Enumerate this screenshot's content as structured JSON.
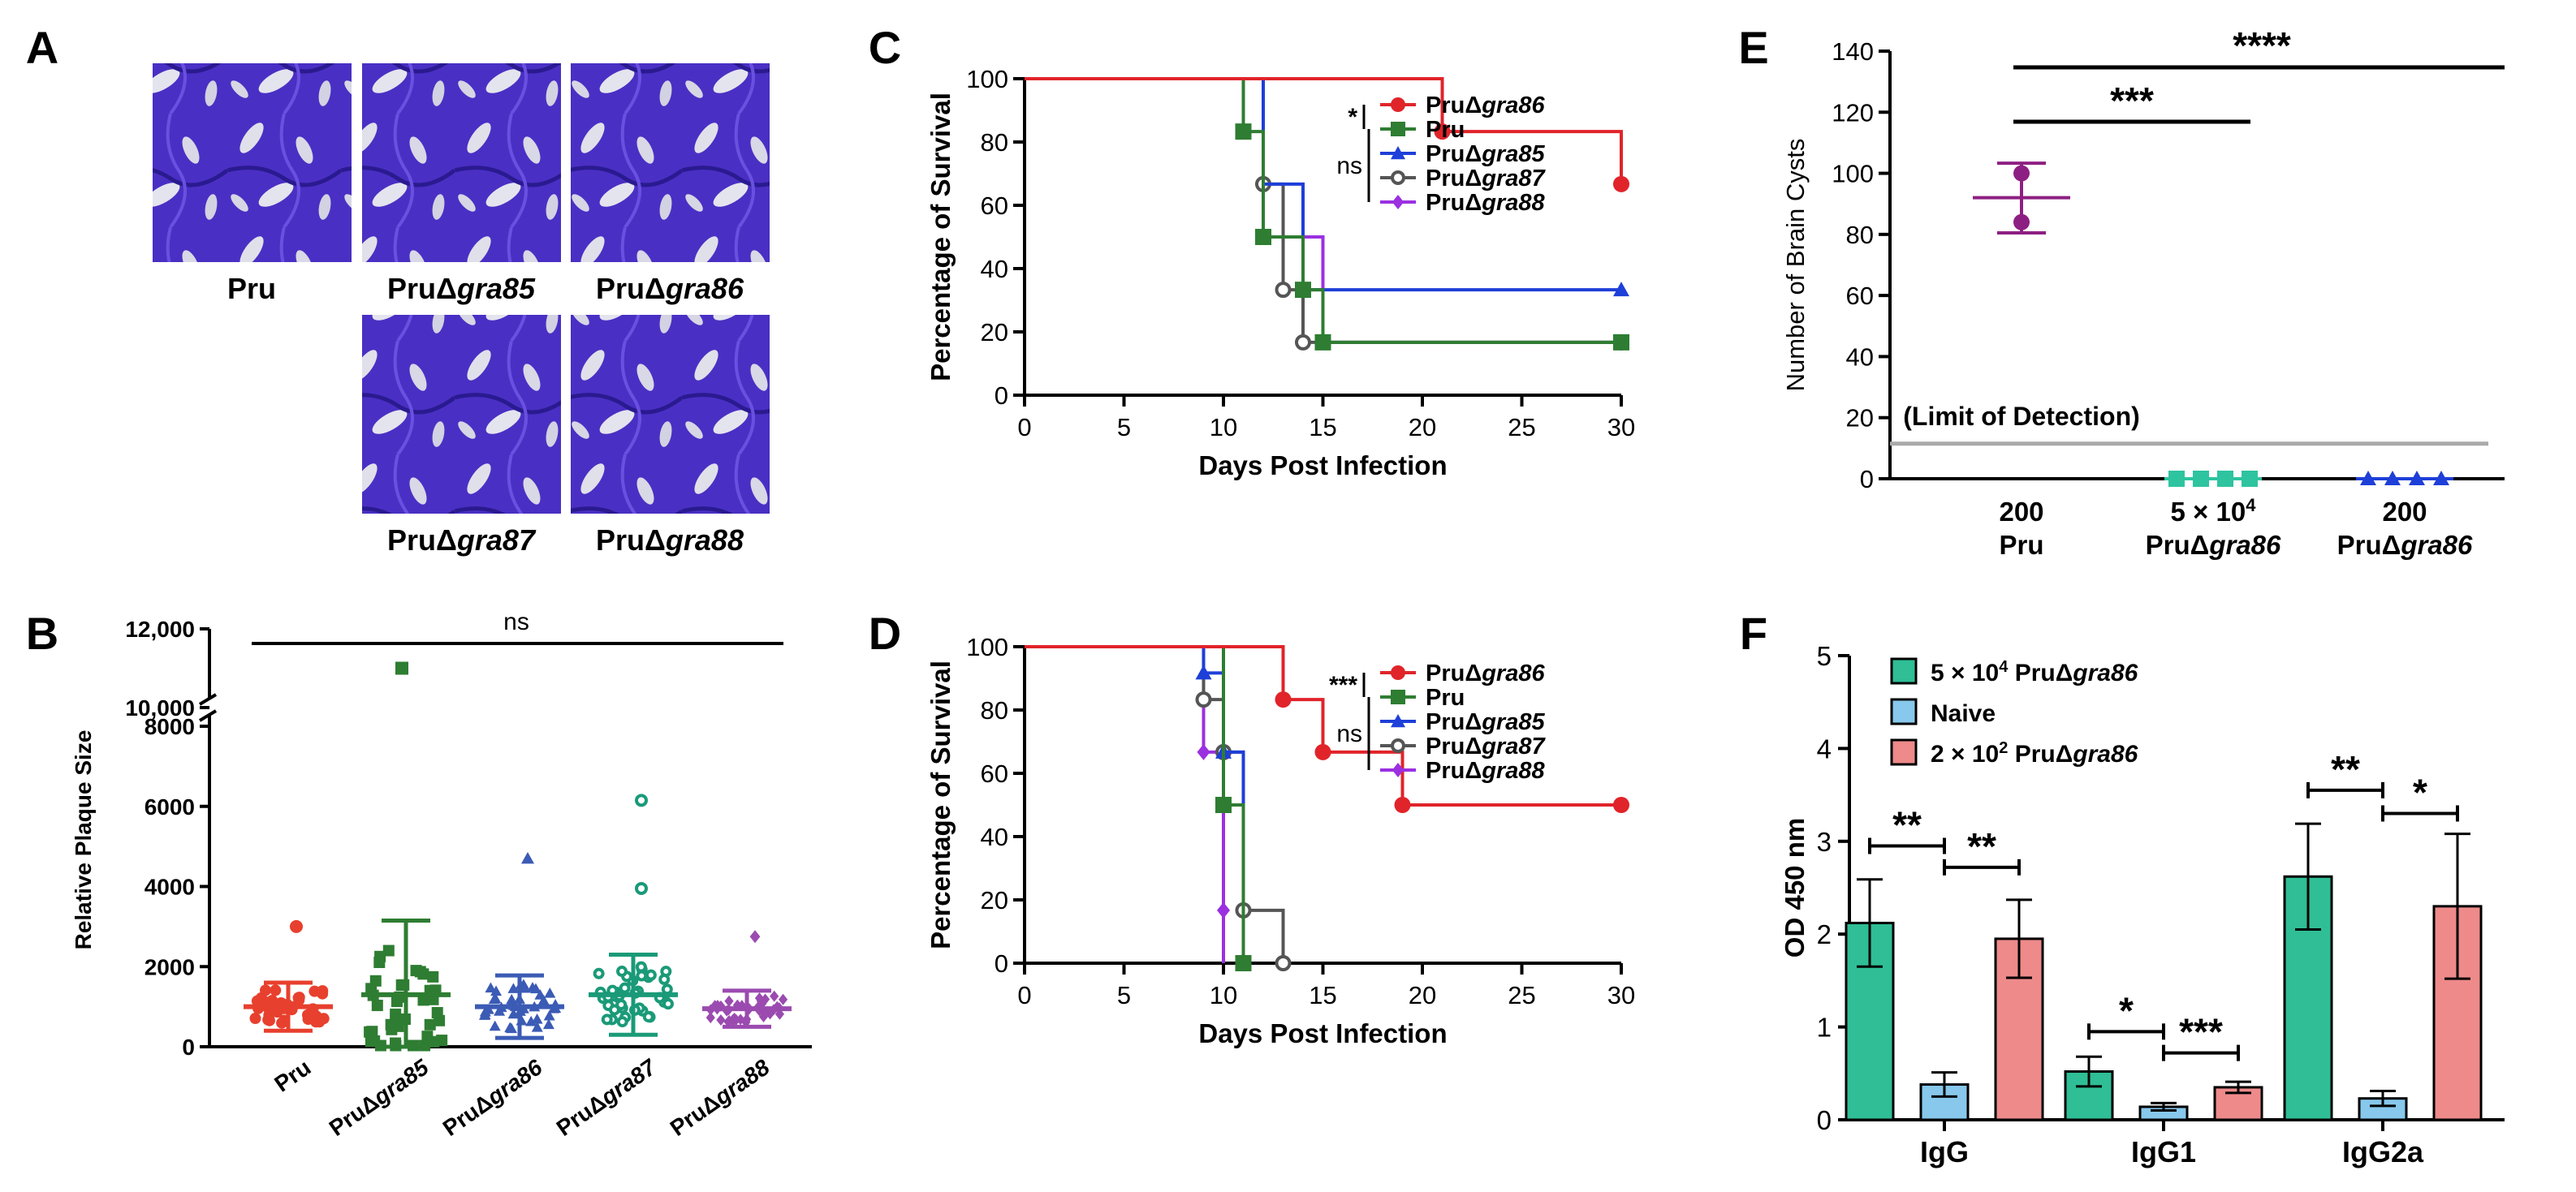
{
  "panel_letters": {
    "A": "A",
    "B": "B",
    "C": "C",
    "D": "D",
    "E": "E",
    "F": "F"
  },
  "colors": {
    "pru": "#2e7d32",
    "gra85": "#1e3fd8",
    "gra86": "#e0242a",
    "gra87": "#555555",
    "gra88": "#9b30e0",
    "plaque_bg": "#4a2fc4",
    "e_point": "#8e1f82",
    "e_gra85": "#2ec4a0",
    "f_vacc": "#2fbe96",
    "f_naive": "#87c8ec",
    "f_low": "#ee8a8a",
    "lod": "#aaaaaa"
  },
  "panelA": {
    "labels": [
      {
        "prefix": "Pru",
        "gene": ""
      },
      {
        "prefix": "PruΔ",
        "gene": "gra85"
      },
      {
        "prefix": "PruΔ",
        "gene": "gra86"
      },
      {
        "prefix": "PruΔ",
        "gene": "gra87"
      },
      {
        "prefix": "PruΔ",
        "gene": "gra88"
      }
    ]
  },
  "chart_data": [
    {
      "panel": "B",
      "type": "scatter",
      "title": "",
      "ylabel": "Relative Plaque Size",
      "yticks": [
        "0",
        "2000",
        "4000",
        "6000",
        "8000"
      ],
      "break_ticks": [
        "10,000",
        "12,000"
      ],
      "ylim": [
        0,
        12000
      ],
      "categories": [
        "Pru",
        "PruΔgra85",
        "PruΔgra86",
        "PruΔgra87",
        "PruΔgra88"
      ],
      "cat_prefix": [
        "Pru",
        "PruΔ",
        "PruΔ",
        "PruΔ",
        "PruΔ"
      ],
      "cat_gene": [
        "",
        "gra85",
        "gra86",
        "gra87",
        "gra88"
      ],
      "means": [
        1000,
        1300,
        1000,
        1300,
        950
      ],
      "sd": [
        600,
        1850,
        780,
        1000,
        450
      ],
      "outliers": [
        [
          3000
        ],
        [
          11000
        ],
        [
          4700
        ],
        [
          6150,
          3950
        ],
        [
          2750
        ]
      ],
      "significance": "ns"
    },
    {
      "panel": "C",
      "type": "line",
      "xlabel": "Days Post Infection",
      "ylabel": "Percentage of Survival",
      "xticks": [
        "0",
        "5",
        "10",
        "15",
        "20",
        "25",
        "30"
      ],
      "yticks": [
        "0",
        "20",
        "40",
        "60",
        "80",
        "100"
      ],
      "xlim": [
        0,
        30
      ],
      "ylim": [
        0,
        100
      ],
      "series": [
        {
          "name": "PruΔgra86",
          "prefix": "PruΔ",
          "gene": "gra86",
          "key": "gra86",
          "marker": "circle",
          "steps": [
            [
              0,
              100
            ],
            [
              21,
              83.3
            ],
            [
              30,
              66.7
            ]
          ],
          "points": [
            [
              21,
              83.3
            ],
            [
              30,
              66.7
            ]
          ]
        },
        {
          "name": "Pru",
          "prefix": "Pru",
          "gene": "",
          "key": "pru",
          "marker": "square",
          "steps": [
            [
              0,
              100
            ],
            [
              11,
              83.3
            ],
            [
              12,
              50
            ],
            [
              14,
              33.3
            ],
            [
              15,
              16.7
            ],
            [
              30,
              16.7
            ]
          ],
          "points": [
            [
              11,
              83.3
            ],
            [
              12,
              50
            ],
            [
              14,
              33.3
            ],
            [
              15,
              16.7
            ],
            [
              30,
              16.7
            ]
          ]
        },
        {
          "name": "PruΔgra85",
          "prefix": "PruΔ",
          "gene": "gra85",
          "key": "gra85",
          "marker": "triangle",
          "steps": [
            [
              0,
              100
            ],
            [
              12,
              66.7
            ],
            [
              14,
              33.3
            ],
            [
              30,
              33.3
            ]
          ],
          "points": [
            [
              30,
              33.3
            ]
          ]
        },
        {
          "name": "PruΔgra87",
          "prefix": "PruΔ",
          "gene": "gra87",
          "key": "gra87",
          "marker": "opencircle",
          "steps": [
            [
              0,
              100
            ],
            [
              12,
              66.7
            ],
            [
              13,
              33.3
            ],
            [
              14,
              16.7
            ],
            [
              30,
              16.7
            ]
          ],
          "points": [
            [
              12,
              66.7
            ],
            [
              13,
              33.3
            ],
            [
              14,
              16.7
            ],
            [
              30,
              16.7
            ]
          ]
        },
        {
          "name": "PruΔgra88",
          "prefix": "PruΔ",
          "gene": "gra88",
          "key": "gra88",
          "marker": "diamond",
          "steps": [
            [
              0,
              100
            ],
            [
              12,
              50
            ],
            [
              15,
              16.7
            ],
            [
              30,
              16.7
            ]
          ],
          "points": []
        }
      ],
      "sig": [
        {
          "label": "*",
          "from": 0,
          "to": 1
        },
        {
          "label": "ns",
          "from": 1,
          "to": 4
        }
      ]
    },
    {
      "panel": "D",
      "type": "line",
      "xlabel": "Days Post Infection",
      "ylabel": "Percentage of Survival",
      "xticks": [
        "0",
        "5",
        "10",
        "15",
        "20",
        "25",
        "30"
      ],
      "yticks": [
        "0",
        "20",
        "40",
        "60",
        "80",
        "100"
      ],
      "xlim": [
        0,
        30
      ],
      "ylim": [
        0,
        100
      ],
      "series": [
        {
          "name": "PruΔgra86",
          "prefix": "PruΔ",
          "gene": "gra86",
          "key": "gra86",
          "marker": "circle",
          "steps": [
            [
              0,
              100
            ],
            [
              13,
              83.3
            ],
            [
              15,
              66.7
            ],
            [
              19,
              50
            ],
            [
              30,
              50
            ]
          ],
          "points": [
            [
              13,
              83.3
            ],
            [
              15,
              66.7
            ],
            [
              19,
              50
            ],
            [
              30,
              50
            ]
          ]
        },
        {
          "name": "Pru",
          "prefix": "Pru",
          "gene": "",
          "key": "pru",
          "marker": "square",
          "steps": [
            [
              0,
              100
            ],
            [
              10,
              50
            ],
            [
              11,
              0
            ]
          ],
          "points": [
            [
              10,
              50
            ],
            [
              11,
              0
            ]
          ]
        },
        {
          "name": "PruΔgra85",
          "prefix": "PruΔ",
          "gene": "gra85",
          "key": "gra85",
          "marker": "triangle",
          "steps": [
            [
              0,
              100
            ],
            [
              9,
              91.7
            ],
            [
              10,
              66.7
            ],
            [
              11,
              0
            ]
          ],
          "points": [
            [
              9,
              91.7
            ],
            [
              10,
              66.7
            ]
          ]
        },
        {
          "name": "PruΔgra87",
          "prefix": "PruΔ",
          "gene": "gra87",
          "key": "gra87",
          "marker": "opencircle",
          "steps": [
            [
              0,
              100
            ],
            [
              9,
              83.3
            ],
            [
              10,
              66.7
            ],
            [
              11,
              16.7
            ],
            [
              13,
              0
            ]
          ],
          "points": [
            [
              9,
              83.3
            ],
            [
              10,
              66.7
            ],
            [
              11,
              16.7
            ],
            [
              13,
              0
            ]
          ]
        },
        {
          "name": "PruΔgra88",
          "prefix": "PruΔ",
          "gene": "gra88",
          "key": "gra88",
          "marker": "diamond",
          "steps": [
            [
              0,
              100
            ],
            [
              9,
              66.7
            ],
            [
              10,
              16.7
            ],
            [
              10,
              0
            ]
          ],
          "points": [
            [
              9,
              66.7
            ],
            [
              10,
              16.7
            ]
          ]
        }
      ],
      "sig": [
        {
          "label": "***",
          "from": 0,
          "to": 1
        },
        {
          "label": "ns",
          "from": 1,
          "to": 4
        }
      ]
    },
    {
      "panel": "E",
      "type": "scatter",
      "ylabel": "Number of Brain Cysts",
      "yticks": [
        "0",
        "20",
        "40",
        "60",
        "80",
        "100",
        "120",
        "140"
      ],
      "ylim": [
        0,
        140
      ],
      "groups": [
        {
          "dose": "200",
          "prefix": "Pru",
          "gene": "",
          "values": [
            100,
            84
          ],
          "mean": 92,
          "sd_high": 103.3,
          "sd_low": 80.5,
          "marker": "circle"
        },
        {
          "dose": "5 × 10",
          "sup": "4",
          "prefix": "PruΔ",
          "gene": "gra86",
          "values": [
            0,
            0,
            0,
            0
          ],
          "marker": "square"
        },
        {
          "dose": "200",
          "prefix": "PruΔ",
          "gene": "gra86",
          "values": [
            0,
            0,
            0,
            0
          ],
          "marker": "triangle"
        }
      ],
      "lod_value": 11.5,
      "lod_label": "(Limit of Detection)",
      "sig": [
        {
          "label": "***",
          "from": 0,
          "to": 1
        },
        {
          "label": "****",
          "from": 0,
          "to": 2
        }
      ]
    },
    {
      "panel": "F",
      "type": "bar",
      "ylabel": "OD 450 nm",
      "yticks": [
        "0",
        "1",
        "2",
        "3",
        "4",
        "5"
      ],
      "ylim": [
        0,
        5
      ],
      "categories": [
        "IgG",
        "IgG1",
        "IgG2a"
      ],
      "series": [
        {
          "name": "5 × 10⁴ PruΔgra86",
          "legend_pre": "5 × 10",
          "legend_sup": "4",
          "legend_mid": " PruΔ",
          "legend_gene": "gra86",
          "key": "f_vacc",
          "values": [
            2.12,
            0.52,
            2.62
          ],
          "errors": [
            0.47,
            0.16,
            0.57
          ]
        },
        {
          "name": "Naive",
          "legend_pre": "Naive",
          "legend_sup": "",
          "legend_mid": "",
          "legend_gene": "",
          "key": "f_naive",
          "values": [
            0.38,
            0.14,
            0.23
          ],
          "errors": [
            0.13,
            0.04,
            0.08
          ]
        },
        {
          "name": "2 × 10² PruΔgra86",
          "legend_pre": "2 × 10",
          "legend_sup": "2",
          "legend_mid": " PruΔ",
          "legend_gene": "gra86",
          "key": "f_low",
          "values": [
            1.95,
            0.35,
            2.3
          ],
          "errors": [
            0.42,
            0.06,
            0.78
          ]
        }
      ],
      "sig": [
        {
          "label": "**",
          "cat": 0,
          "a": 0,
          "b": 1,
          "y": 2.95
        },
        {
          "label": "**",
          "cat": 0,
          "a": 1,
          "b": 2,
          "y": 2.72
        },
        {
          "label": "*",
          "cat": 1,
          "a": 0,
          "b": 1,
          "y": 0.95
        },
        {
          "label": "***",
          "cat": 1,
          "a": 1,
          "b": 2,
          "y": 0.72
        },
        {
          "label": "**",
          "cat": 2,
          "a": 0,
          "b": 1,
          "y": 3.55
        },
        {
          "label": "*",
          "cat": 2,
          "a": 1,
          "b": 2,
          "y": 3.3
        }
      ]
    }
  ]
}
